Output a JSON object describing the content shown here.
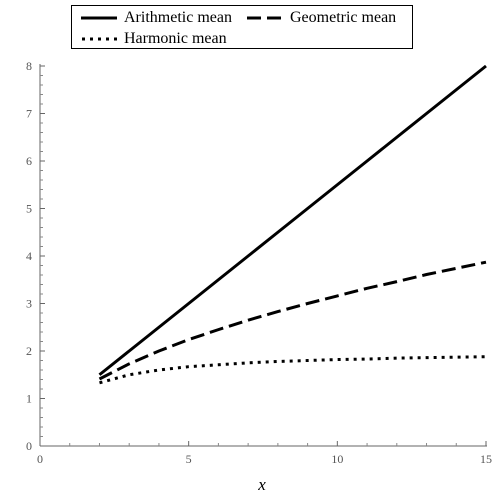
{
  "chart_data": {
    "type": "line",
    "title": "",
    "xlabel": "x",
    "ylabel": "",
    "xlim": [
      0,
      15
    ],
    "ylim": [
      0,
      8
    ],
    "xticks": [
      0,
      5,
      10,
      15
    ],
    "yticks": [
      0,
      1,
      2,
      3,
      4,
      5,
      6,
      7,
      8
    ],
    "grid": false,
    "legend_placement": "top",
    "x": [
      2,
      3,
      4,
      5,
      6,
      7,
      8,
      9,
      10,
      11,
      12,
      13,
      14,
      15
    ],
    "series": [
      {
        "name": "Arithmetic mean",
        "dash": "solid",
        "color": "#000000",
        "values": [
          1.5,
          2.0,
          2.5,
          3.0,
          3.5,
          4.0,
          4.5,
          5.0,
          5.5,
          6.0,
          6.5,
          7.0,
          7.5,
          8.0
        ]
      },
      {
        "name": "Geometric mean",
        "dash": "dashed",
        "color": "#000000",
        "values": [
          1.41,
          1.73,
          2.0,
          2.24,
          2.45,
          2.65,
          2.83,
          3.0,
          3.16,
          3.32,
          3.46,
          3.61,
          3.74,
          3.87
        ]
      },
      {
        "name": "Harmonic mean",
        "dash": "dotted",
        "color": "#000000",
        "values": [
          1.33,
          1.5,
          1.6,
          1.67,
          1.71,
          1.75,
          1.78,
          1.8,
          1.82,
          1.83,
          1.85,
          1.86,
          1.87,
          1.88
        ]
      }
    ]
  }
}
